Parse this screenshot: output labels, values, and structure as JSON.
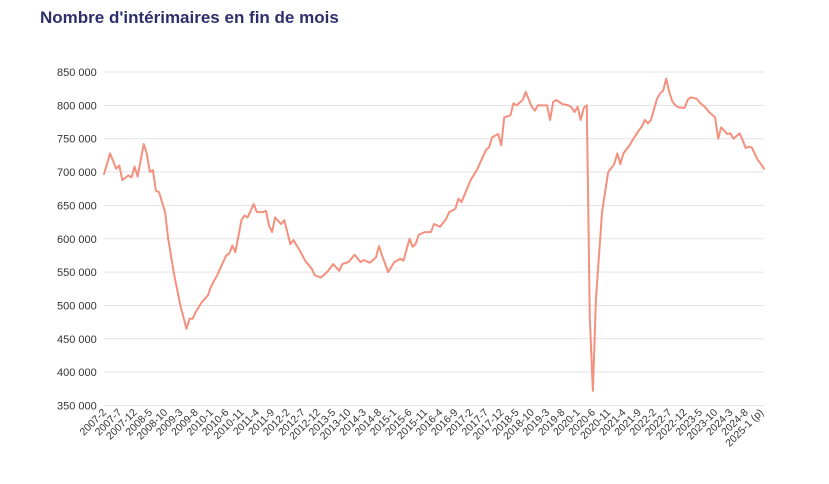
{
  "chart_data": {
    "type": "line",
    "title": "Nombre d'intérimaires en fin de mois",
    "xlabel": "",
    "ylabel": "",
    "ylim": [
      350000,
      850000
    ],
    "grid": "horizontal",
    "yticks": [
      "350 000",
      "400 000",
      "450 000",
      "500 000",
      "550 000",
      "600 000",
      "650 000",
      "700 000",
      "750 000",
      "800 000",
      "850 000"
    ],
    "xtick_labels": [
      "2007-2",
      "2007-7",
      "2007-12",
      "2008-5",
      "2008-10",
      "2009-3",
      "2009-8",
      "2010-1",
      "2010-6",
      "2010-11",
      "2011-4",
      "2011-9",
      "2012-2",
      "2012-7",
      "2012-12",
      "2013-5",
      "2013-10",
      "2014-3",
      "2014-8",
      "2015-1",
      "2015-6",
      "2015-11",
      "2016-4",
      "2016-9",
      "2017-2",
      "2017-7",
      "2017-12",
      "2018-5",
      "2018-10",
      "2019-3",
      "2019-8",
      "2020-1",
      "2020-6",
      "2020-11",
      "2021-4",
      "2021-9",
      "2022-2",
      "2022-7",
      "2022-12",
      "2023-5",
      "2023-10",
      "2024-3",
      "2024-8",
      "2025-1 (p)"
    ],
    "series": [
      {
        "color": "#f4907e",
        "keypoints": [
          [
            "2007-2",
            697000
          ],
          [
            "2007-4",
            728000
          ],
          [
            "2007-6",
            705000
          ],
          [
            "2007-7",
            710000
          ],
          [
            "2007-8",
            688000
          ],
          [
            "2007-10",
            695000
          ],
          [
            "2007-11",
            692000
          ],
          [
            "2007-12",
            708000
          ],
          [
            "2008-1",
            693000
          ],
          [
            "2008-3",
            742000
          ],
          [
            "2008-4",
            728000
          ],
          [
            "2008-5",
            700000
          ],
          [
            "2008-6",
            703000
          ],
          [
            "2008-7",
            672000
          ],
          [
            "2008-8",
            670000
          ],
          [
            "2008-10",
            640000
          ],
          [
            "2008-11",
            600000
          ],
          [
            "2009-1",
            545000
          ],
          [
            "2009-3",
            500000
          ],
          [
            "2009-5",
            465000
          ],
          [
            "2009-6",
            480000
          ],
          [
            "2009-7",
            480000
          ],
          [
            "2009-8",
            490000
          ],
          [
            "2009-10",
            505000
          ],
          [
            "2009-12",
            515000
          ],
          [
            "2010-1",
            528000
          ],
          [
            "2010-3",
            545000
          ],
          [
            "2010-5",
            565000
          ],
          [
            "2010-6",
            575000
          ],
          [
            "2010-7",
            578000
          ],
          [
            "2010-8",
            590000
          ],
          [
            "2010-9",
            580000
          ],
          [
            "2010-11",
            628000
          ],
          [
            "2010-12",
            635000
          ],
          [
            "2011-1",
            632000
          ],
          [
            "2011-3",
            652000
          ],
          [
            "2011-4",
            640000
          ],
          [
            "2011-6",
            640000
          ],
          [
            "2011-7",
            642000
          ],
          [
            "2011-8",
            620000
          ],
          [
            "2011-9",
            610000
          ],
          [
            "2011-10",
            632000
          ],
          [
            "2011-12",
            622000
          ],
          [
            "2012-1",
            628000
          ],
          [
            "2012-3",
            592000
          ],
          [
            "2012-4",
            598000
          ],
          [
            "2012-6",
            583000
          ],
          [
            "2012-8",
            566000
          ],
          [
            "2012-10",
            555000
          ],
          [
            "2012-11",
            545000
          ],
          [
            "2013-1",
            542000
          ],
          [
            "2013-3",
            550000
          ],
          [
            "2013-5",
            562000
          ],
          [
            "2013-7",
            552000
          ],
          [
            "2013-8",
            562000
          ],
          [
            "2013-10",
            565000
          ],
          [
            "2013-12",
            576000
          ],
          [
            "2014-2",
            565000
          ],
          [
            "2014-3",
            568000
          ],
          [
            "2014-5",
            564000
          ],
          [
            "2014-7",
            572000
          ],
          [
            "2014-8",
            589000
          ],
          [
            "2014-9",
            575000
          ],
          [
            "2014-11",
            550000
          ],
          [
            "2015-1",
            565000
          ],
          [
            "2015-3",
            570000
          ],
          [
            "2015-4",
            567000
          ],
          [
            "2015-6",
            600000
          ],
          [
            "2015-7",
            588000
          ],
          [
            "2015-8",
            592000
          ],
          [
            "2015-9",
            606000
          ],
          [
            "2015-11",
            610000
          ],
          [
            "2016-1",
            610000
          ],
          [
            "2016-2",
            622000
          ],
          [
            "2016-4",
            618000
          ],
          [
            "2016-6",
            630000
          ],
          [
            "2016-7",
            640000
          ],
          [
            "2016-9",
            645000
          ],
          [
            "2016-10",
            660000
          ],
          [
            "2016-11",
            655000
          ],
          [
            "2017-2",
            688000
          ],
          [
            "2017-4",
            703000
          ],
          [
            "2017-7",
            733000
          ],
          [
            "2017-8",
            737000
          ],
          [
            "2017-9",
            752000
          ],
          [
            "2017-11",
            757000
          ],
          [
            "2017-12",
            740000
          ],
          [
            "2018-1",
            782000
          ],
          [
            "2018-3",
            785000
          ],
          [
            "2018-4",
            803000
          ],
          [
            "2018-5",
            800000
          ],
          [
            "2018-7",
            808000
          ],
          [
            "2018-8",
            820000
          ],
          [
            "2018-10",
            798000
          ],
          [
            "2018-11",
            792000
          ],
          [
            "2018-12",
            800000
          ],
          [
            "2019-3",
            800000
          ],
          [
            "2019-4",
            778000
          ],
          [
            "2019-5",
            805000
          ],
          [
            "2019-6",
            808000
          ],
          [
            "2019-8",
            802000
          ],
          [
            "2019-10",
            800000
          ],
          [
            "2019-11",
            797000
          ],
          [
            "2019-12",
            790000
          ],
          [
            "2020-1",
            798000
          ],
          [
            "2020-2",
            778000
          ],
          [
            "2020-3",
            796000
          ],
          [
            "2020-4",
            800000
          ],
          [
            "2020-5",
            480000
          ],
          [
            "2020-6",
            372000
          ],
          [
            "2020-7",
            510000
          ],
          [
            "2020-9",
            640000
          ],
          [
            "2020-11",
            700000
          ],
          [
            "2021-1",
            712000
          ],
          [
            "2021-2",
            728000
          ],
          [
            "2021-3",
            712000
          ],
          [
            "2021-4",
            728000
          ],
          [
            "2021-6",
            740000
          ],
          [
            "2021-7",
            748000
          ],
          [
            "2021-9",
            762000
          ],
          [
            "2021-10",
            768000
          ],
          [
            "2021-11",
            778000
          ],
          [
            "2021-12",
            773000
          ],
          [
            "2022-1",
            778000
          ],
          [
            "2022-3",
            810000
          ],
          [
            "2022-4",
            818000
          ],
          [
            "2022-5",
            822000
          ],
          [
            "2022-6",
            840000
          ],
          [
            "2022-7",
            820000
          ],
          [
            "2022-8",
            806000
          ],
          [
            "2022-9",
            800000
          ],
          [
            "2022-10",
            797000
          ],
          [
            "2022-12",
            796000
          ],
          [
            "2023-1",
            808000
          ],
          [
            "2023-2",
            812000
          ],
          [
            "2023-4",
            810000
          ],
          [
            "2023-5",
            804000
          ],
          [
            "2023-7",
            796000
          ],
          [
            "2023-8",
            790000
          ],
          [
            "2023-10",
            782000
          ],
          [
            "2023-11",
            750000
          ],
          [
            "2023-12",
            767000
          ],
          [
            "2024-2",
            757000
          ],
          [
            "2024-3",
            758000
          ],
          [
            "2024-4",
            750000
          ],
          [
            "2024-6",
            758000
          ],
          [
            "2024-7",
            748000
          ],
          [
            "2024-8",
            736000
          ],
          [
            "2024-9",
            738000
          ],
          [
            "2024-10",
            737000
          ],
          [
            "2024-11",
            727000
          ],
          [
            "2024-12",
            718000
          ],
          [
            "2025-1",
            712000
          ],
          [
            "2025-2",
            705000
          ]
        ]
      }
    ]
  }
}
